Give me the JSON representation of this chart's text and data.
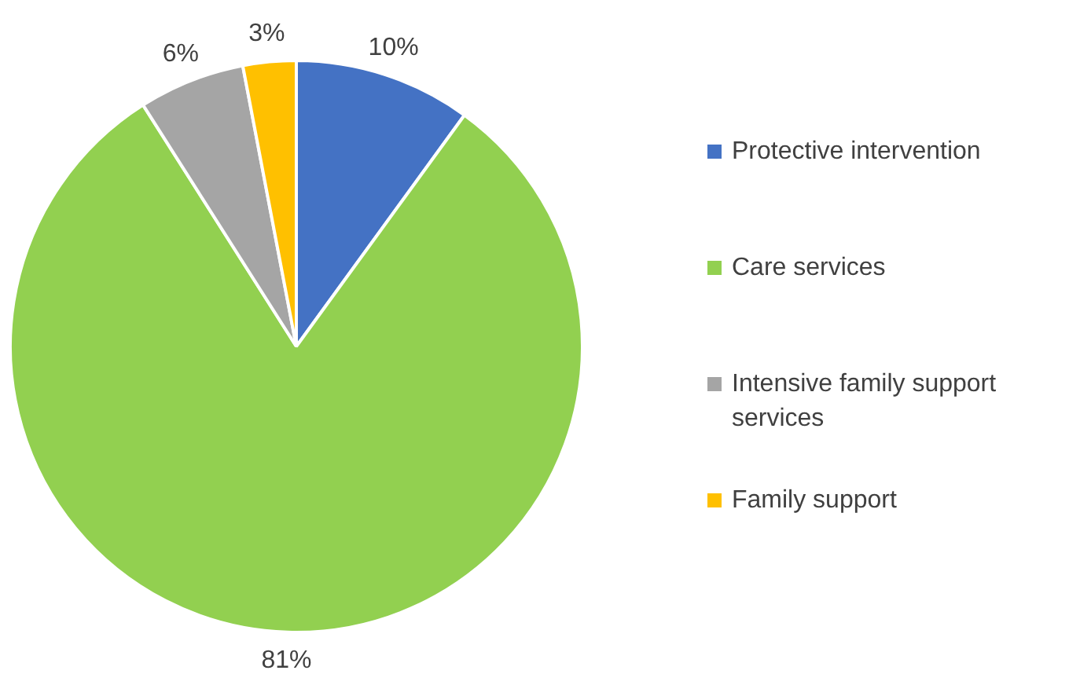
{
  "chart_data": {
    "type": "pie",
    "categories": [
      "Protective intervention",
      "Care services",
      "Intensive family support services",
      "Family support"
    ],
    "values": [
      10,
      81,
      6,
      3
    ],
    "colors": [
      "#4472c4",
      "#92d050",
      "#a5a5a5",
      "#ffc000"
    ],
    "value_labels": [
      "10%",
      "81%",
      "6%",
      "3%"
    ],
    "legend": "right"
  }
}
